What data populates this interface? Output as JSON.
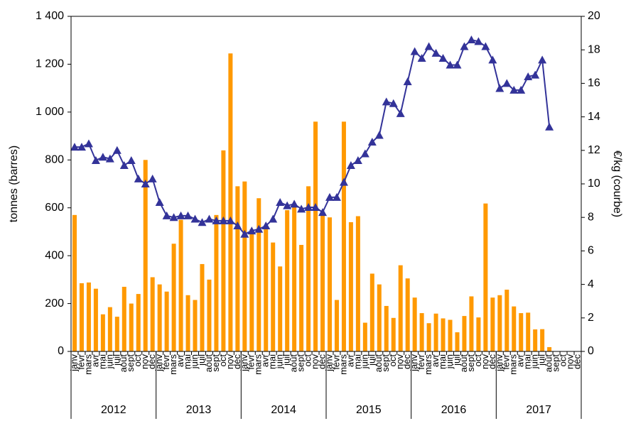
{
  "chart_data": {
    "type": "bar_line",
    "y_label": "tonnes (barres)",
    "y2_label": "€/kg (courbe)",
    "categories": [
      "janv",
      "févr",
      "mars",
      "avr",
      "mai",
      "juin",
      "juil",
      "août",
      "sept",
      "oct",
      "nov",
      "déc",
      "janv",
      "févr",
      "mars",
      "avr",
      "mai",
      "juin",
      "juil",
      "août",
      "sept",
      "oct",
      "nov",
      "déc",
      "janv",
      "févr",
      "mars",
      "avr",
      "mai",
      "juin",
      "juil",
      "août",
      "sept",
      "oct",
      "nov",
      "déc",
      "janv",
      "févr",
      "mars",
      "avr",
      "mai",
      "juin",
      "juil",
      "août",
      "sept",
      "oct",
      "nov",
      "déc",
      "janv",
      "févr",
      "mars",
      "avr",
      "mai",
      "juin",
      "juil",
      "août",
      "sept",
      "oct",
      "nov",
      "déc",
      "janv",
      "févr",
      "mars",
      "avr",
      "mai",
      "juin",
      "juil",
      "août",
      "sept",
      "oct",
      "nov",
      "déc"
    ],
    "year_groups": [
      "2012",
      "2013",
      "2014",
      "2015",
      "2016",
      "2017"
    ],
    "series": [
      {
        "name": "tonnes",
        "type": "bar",
        "color": "#ff9900",
        "axis": "y",
        "values": [
          570,
          285,
          288,
          262,
          155,
          185,
          145,
          270,
          200,
          240,
          800,
          310,
          280,
          250,
          450,
          550,
          235,
          215,
          365,
          300,
          570,
          840,
          1245,
          690,
          710,
          510,
          640,
          510,
          455,
          355,
          590,
          610,
          445,
          690,
          960,
          570,
          560,
          215,
          960,
          540,
          565,
          120,
          325,
          280,
          190,
          140,
          360,
          305,
          225,
          160,
          118,
          158,
          138,
          132,
          80,
          148,
          230,
          142,
          618,
          225,
          235,
          258,
          188,
          160,
          162,
          92,
          93,
          18,
          null,
          null,
          null,
          null
        ]
      },
      {
        "name": "€/kg",
        "type": "line",
        "color": "#333399",
        "axis": "y2",
        "values": [
          12.2,
          12.2,
          12.4,
          11.4,
          11.6,
          11.5,
          12.0,
          11.1,
          11.4,
          10.3,
          10.0,
          10.3,
          8.9,
          8.1,
          8.0,
          8.1,
          8.1,
          7.9,
          7.7,
          7.9,
          7.8,
          7.8,
          7.8,
          7.5,
          7.0,
          7.2,
          7.3,
          7.5,
          7.9,
          8.9,
          8.7,
          8.8,
          8.5,
          8.6,
          8.6,
          8.3,
          9.2,
          9.2,
          10.1,
          11.1,
          11.4,
          11.8,
          12.5,
          12.9,
          14.9,
          14.8,
          14.2,
          16.1,
          17.9,
          17.5,
          18.2,
          17.8,
          17.5,
          17.1,
          17.1,
          18.2,
          18.6,
          18.5,
          18.2,
          17.4,
          15.7,
          16.0,
          15.6,
          15.6,
          16.4,
          16.5,
          17.4,
          13.4,
          null,
          null,
          null,
          null
        ]
      }
    ],
    "ylim": [
      0,
      1400
    ],
    "yticks": [
      0,
      200,
      400,
      600,
      800,
      {
        "value": 1000,
        "label": "1 000"
      },
      {
        "value": 1200,
        "label": "1 200"
      },
      {
        "value": 1400,
        "label": "1 400"
      }
    ],
    "y2lim": [
      0,
      20
    ],
    "y2ticks": [
      0,
      2,
      4,
      6,
      8,
      10,
      12,
      14,
      16,
      18,
      20
    ]
  }
}
